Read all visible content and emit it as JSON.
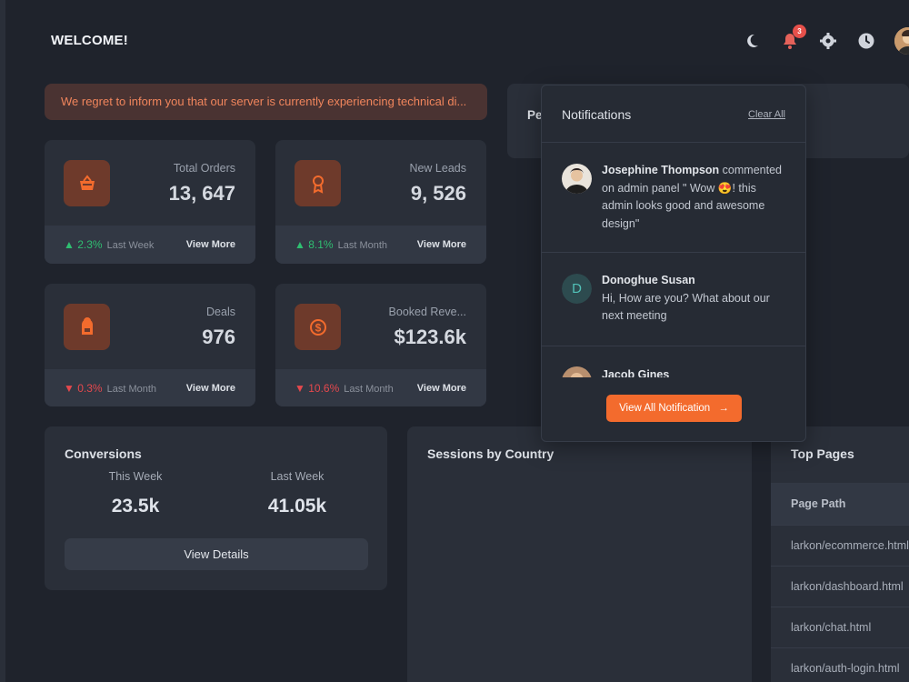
{
  "header": {
    "welcome": "WELCOME!",
    "notification_count": "3",
    "icons": [
      "moon-icon",
      "bell-icon",
      "gear-icon",
      "clock-icon"
    ]
  },
  "alert": {
    "text": "We regret to inform you that our server is currently experiencing technical di..."
  },
  "stats": [
    {
      "label": "Total Orders",
      "value": "13, 647",
      "trend": "2.3%",
      "trend_dir": "up",
      "period": "Last Week",
      "link": "View More",
      "icon": "basket-icon"
    },
    {
      "label": "New Leads",
      "value": "9, 526",
      "trend": "8.1%",
      "trend_dir": "up",
      "period": "Last Month",
      "link": "View More",
      "icon": "award-icon"
    },
    {
      "label": "Deals",
      "value": "976",
      "trend": "0.3%",
      "trend_dir": "down",
      "period": "Last Month",
      "link": "View More",
      "icon": "backpack-icon"
    },
    {
      "label": "Booked Reve...",
      "value": "$123.6k",
      "trend": "10.6%",
      "trend_dir": "down",
      "period": "Last Month",
      "link": "View More",
      "icon": "dollar-circle-icon"
    }
  ],
  "conversions": {
    "title": "Conversions",
    "this_week_label": "This Week",
    "this_week_value": "23.5k",
    "last_week_label": "Last Week",
    "last_week_value": "41.05k",
    "button": "View Details"
  },
  "sessions": {
    "title": "Sessions by Country"
  },
  "top_pages": {
    "title": "Top Pages",
    "column": "Page Path",
    "rows": [
      "larkon/ecommerce.html",
      "larkon/dashboard.html",
      "larkon/chat.html",
      "larkon/auth-login.html"
    ]
  },
  "partial_card": {
    "label": "Pe"
  },
  "notifications": {
    "title": "Notifications",
    "clear": "Clear All",
    "items": [
      {
        "name": "Josephine Thompson",
        "pre": " commented on admin panel \" Wow ",
        "emoji": "😍",
        "post": "! this admin looks good and awesome design\""
      },
      {
        "name": "Donoghue Susan",
        "letter": "D",
        "message": "Hi, How are you? What about our next meeting"
      },
      {
        "name": "Jacob Gines"
      }
    ],
    "view_all": "View All Notification"
  },
  "colors": {
    "accent": "#f36b2d",
    "up": "#2fbf71",
    "down": "#e5484d",
    "background": "#1f232c",
    "card": "#2a2f39"
  }
}
